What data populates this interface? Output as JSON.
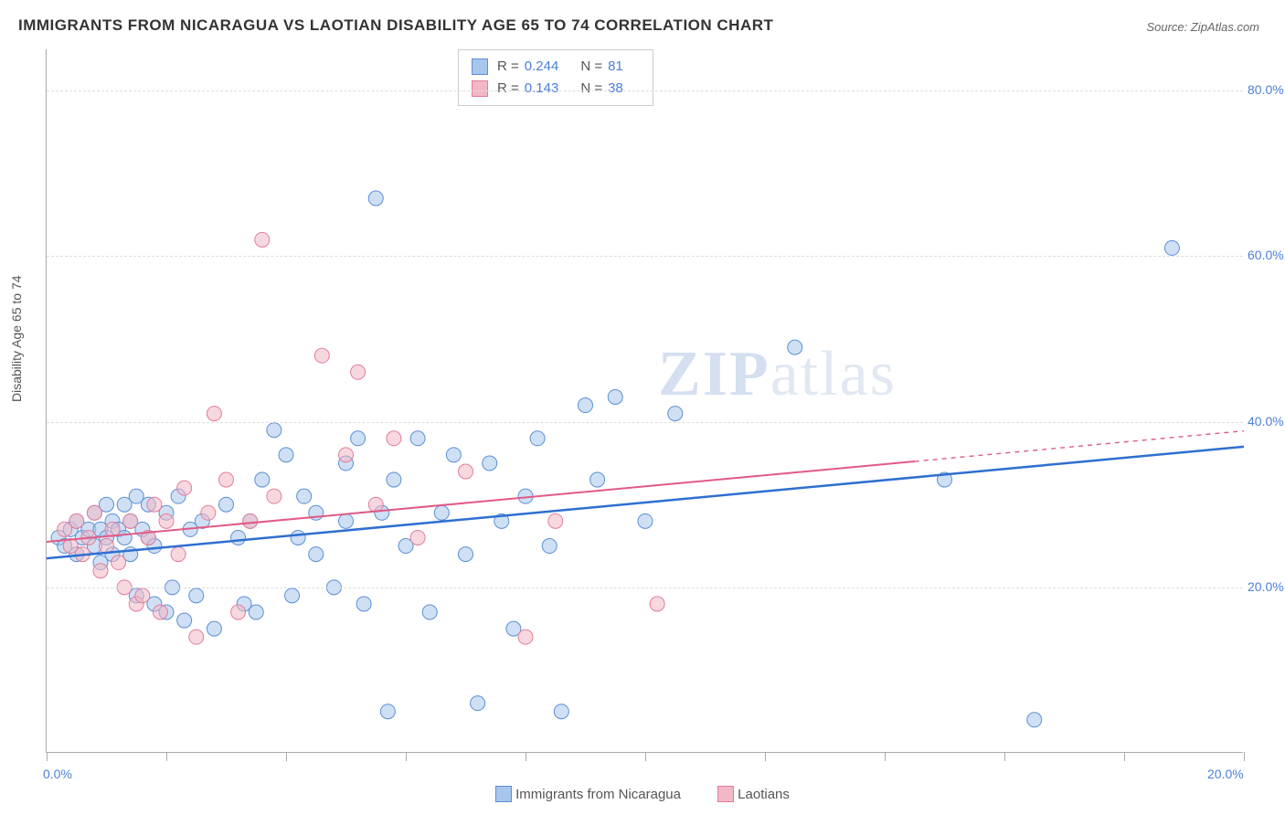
{
  "title": "IMMIGRANTS FROM NICARAGUA VS LAOTIAN DISABILITY AGE 65 TO 74 CORRELATION CHART",
  "source": "Source: ZipAtlas.com",
  "ylabel": "Disability Age 65 to 74",
  "watermark_zip": "ZIP",
  "watermark_atlas": "atlas",
  "chart": {
    "type": "scatter",
    "xlim": [
      0,
      20
    ],
    "ylim": [
      0,
      85
    ],
    "x_ticks": [
      0,
      2,
      4,
      6,
      8,
      10,
      12,
      14,
      16,
      18,
      20
    ],
    "x_tick_labels": {
      "0": "0.0%",
      "20": "20.0%"
    },
    "y_gridlines": [
      20,
      40,
      60,
      80
    ],
    "y_tick_labels": {
      "20": "20.0%",
      "40": "40.0%",
      "60": "60.0%",
      "80": "80.0%"
    },
    "background_color": "#ffffff",
    "grid_color": "#dddddd",
    "axis_label_color": "#4a7fd8",
    "marker_radius": 8,
    "marker_opacity": 0.55,
    "series": [
      {
        "name": "Immigrants from Nicaragua",
        "color_fill": "#a8c6ec",
        "color_stroke": "#5b8fd6",
        "r_value": "0.244",
        "n_value": "81",
        "trend": {
          "x1": 0,
          "y1": 23.5,
          "x2": 20,
          "y2": 37.0,
          "dash_from_x": 20,
          "stroke": "#2e6fd0",
          "width": 2.5
        },
        "points": [
          [
            0.2,
            26
          ],
          [
            0.3,
            25
          ],
          [
            0.4,
            27
          ],
          [
            0.5,
            24
          ],
          [
            0.5,
            28
          ],
          [
            0.6,
            26
          ],
          [
            0.7,
            27
          ],
          [
            0.8,
            25
          ],
          [
            0.8,
            29
          ],
          [
            0.9,
            23
          ],
          [
            0.9,
            27
          ],
          [
            1.0,
            30
          ],
          [
            1.0,
            26
          ],
          [
            1.1,
            28
          ],
          [
            1.1,
            24
          ],
          [
            1.2,
            27
          ],
          [
            1.3,
            26
          ],
          [
            1.3,
            30
          ],
          [
            1.4,
            28
          ],
          [
            1.4,
            24
          ],
          [
            1.5,
            31
          ],
          [
            1.5,
            19
          ],
          [
            1.6,
            27
          ],
          [
            1.7,
            26
          ],
          [
            1.7,
            30
          ],
          [
            1.8,
            18
          ],
          [
            1.8,
            25
          ],
          [
            2.0,
            29
          ],
          [
            2.0,
            17
          ],
          [
            2.1,
            20
          ],
          [
            2.2,
            31
          ],
          [
            2.3,
            16
          ],
          [
            2.4,
            27
          ],
          [
            2.5,
            19
          ],
          [
            2.6,
            28
          ],
          [
            2.8,
            15
          ],
          [
            3.0,
            30
          ],
          [
            3.2,
            26
          ],
          [
            3.3,
            18
          ],
          [
            3.4,
            28
          ],
          [
            3.5,
            17
          ],
          [
            3.6,
            33
          ],
          [
            3.8,
            39
          ],
          [
            4.0,
            36
          ],
          [
            4.1,
            19
          ],
          [
            4.2,
            26
          ],
          [
            4.3,
            31
          ],
          [
            4.5,
            29
          ],
          [
            4.5,
            24
          ],
          [
            4.8,
            20
          ],
          [
            5.0,
            35
          ],
          [
            5.0,
            28
          ],
          [
            5.2,
            38
          ],
          [
            5.3,
            18
          ],
          [
            5.5,
            67
          ],
          [
            5.6,
            29
          ],
          [
            5.7,
            5
          ],
          [
            5.8,
            33
          ],
          [
            6.0,
            25
          ],
          [
            6.2,
            38
          ],
          [
            6.4,
            17
          ],
          [
            6.6,
            29
          ],
          [
            6.8,
            36
          ],
          [
            7.0,
            24
          ],
          [
            7.2,
            6
          ],
          [
            7.4,
            35
          ],
          [
            7.6,
            28
          ],
          [
            7.8,
            15
          ],
          [
            8.0,
            31
          ],
          [
            8.2,
            38
          ],
          [
            8.4,
            25
          ],
          [
            8.6,
            5
          ],
          [
            9.0,
            42
          ],
          [
            9.2,
            33
          ],
          [
            9.5,
            43
          ],
          [
            10.0,
            28
          ],
          [
            10.5,
            41
          ],
          [
            12.5,
            49
          ],
          [
            15.0,
            33
          ],
          [
            16.5,
            4
          ],
          [
            18.8,
            61
          ]
        ]
      },
      {
        "name": "Laotians",
        "color_fill": "#f3b8c5",
        "color_stroke": "#e37d9a",
        "r_value": "0.143",
        "n_value": "38",
        "trend": {
          "x1": 0,
          "y1": 25.5,
          "x2": 14.5,
          "y2": 35.2,
          "dash_from_x": 14.5,
          "dash_to_x": 20,
          "dash_to_y": 38.9,
          "stroke": "#e05a85",
          "width": 2
        },
        "points": [
          [
            0.3,
            27
          ],
          [
            0.4,
            25
          ],
          [
            0.5,
            28
          ],
          [
            0.6,
            24
          ],
          [
            0.7,
            26
          ],
          [
            0.8,
            29
          ],
          [
            0.9,
            22
          ],
          [
            1.0,
            25
          ],
          [
            1.1,
            27
          ],
          [
            1.2,
            23
          ],
          [
            1.3,
            20
          ],
          [
            1.4,
            28
          ],
          [
            1.5,
            18
          ],
          [
            1.6,
            19
          ],
          [
            1.7,
            26
          ],
          [
            1.8,
            30
          ],
          [
            1.9,
            17
          ],
          [
            2.0,
            28
          ],
          [
            2.2,
            24
          ],
          [
            2.3,
            32
          ],
          [
            2.5,
            14
          ],
          [
            2.7,
            29
          ],
          [
            2.8,
            41
          ],
          [
            3.0,
            33
          ],
          [
            3.2,
            17
          ],
          [
            3.4,
            28
          ],
          [
            3.6,
            62
          ],
          [
            3.8,
            31
          ],
          [
            4.6,
            48
          ],
          [
            5.0,
            36
          ],
          [
            5.2,
            46
          ],
          [
            5.5,
            30
          ],
          [
            5.8,
            38
          ],
          [
            6.2,
            26
          ],
          [
            7.0,
            34
          ],
          [
            8.0,
            14
          ],
          [
            8.5,
            28
          ],
          [
            10.2,
            18
          ]
        ]
      }
    ]
  },
  "legend_bottom": [
    {
      "label": "Immigrants from Nicaragua",
      "fill": "#a8c6ec",
      "stroke": "#5b8fd6"
    },
    {
      "label": "Laotians",
      "fill": "#f3b8c5",
      "stroke": "#e37d9a"
    }
  ]
}
